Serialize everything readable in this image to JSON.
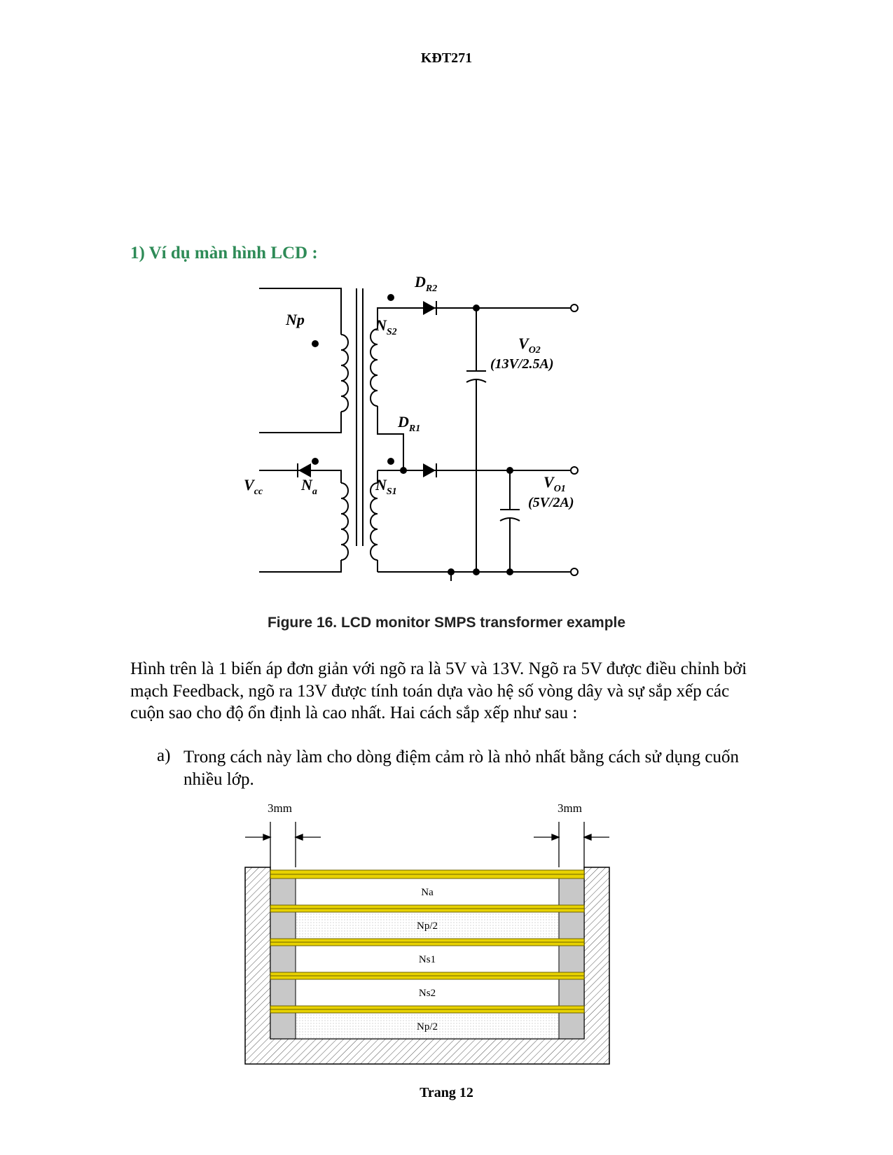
{
  "header": {
    "code": "KĐT271"
  },
  "section": {
    "heading": "1) Ví dụ màn hình LCD :"
  },
  "schematic": {
    "labels": {
      "np": "Np",
      "ns2": "N",
      "ns2_sub": "S2",
      "ns1": "N",
      "ns1_sub": "S1",
      "na": "N",
      "na_sub": "a",
      "vcc": "V",
      "vcc_sub": "cc",
      "dr2": "D",
      "dr2_sub": "R2",
      "dr1": "D",
      "dr1_sub": "R1",
      "vo2": "V",
      "vo2_sub": "O2",
      "vo2_spec": "(13V/2.5A)",
      "vo1": "V",
      "vo1_sub": "O1",
      "vo1_spec": "(5V/2A)"
    },
    "caption": "Figure 16. LCD monitor SMPS transformer example"
  },
  "body": {
    "paragraph": "Hình trên là 1 biến áp đơn giản với ngõ ra là 5V và 13V. Ngõ ra 5V được điều chỉnh bởi mạch Feedback, ngõ ra 13V được tính toán dựa vào hệ số vòng dây và sự sắp xếp các cuộn sao cho độ ổn định là cao nhất. Hai cách sắp xếp như sau :",
    "list": [
      {
        "marker": "a)",
        "text": "Trong cách này làm cho dòng điệm cảm rò là nhỏ nhất bằng cách sử dụng cuốn nhiều lớp."
      }
    ]
  },
  "winding_diagram": {
    "margin_label_left": "3mm",
    "margin_label_right": "3mm",
    "layers": [
      "Na",
      "Np/2",
      "Ns1",
      "Ns2",
      "Np/2"
    ],
    "colors": {
      "tape": "#e8d200",
      "tape_edge": "#6b6100",
      "bobbin_margin": "#c8c8c8"
    }
  },
  "footer": {
    "page": "Trang 12"
  }
}
